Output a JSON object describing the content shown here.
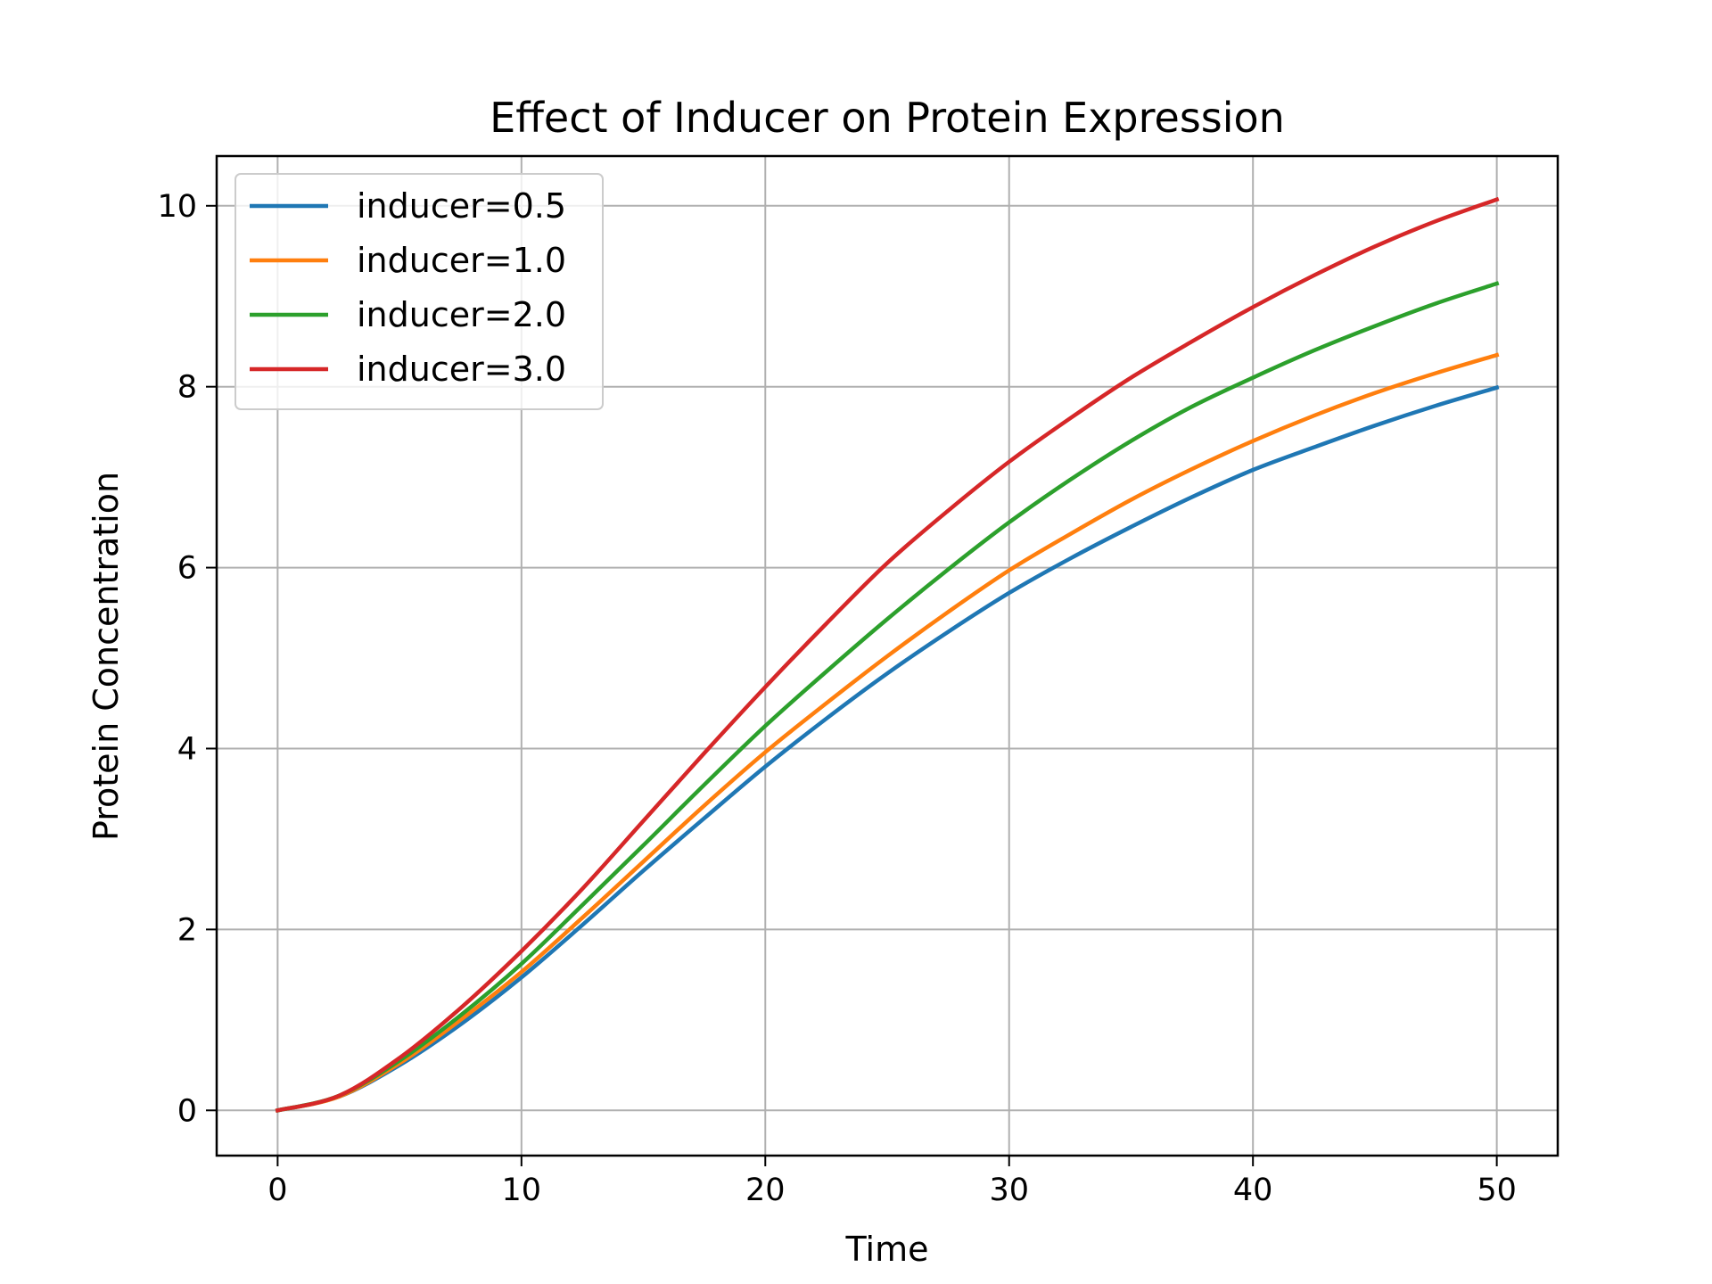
{
  "chart_data": {
    "type": "line",
    "title": "Effect of Inducer on Protein Expression",
    "xlabel": "Time",
    "ylabel": "Protein Concentration",
    "xlim": [
      -2.5,
      52.5
    ],
    "ylim": [
      -0.5,
      10.55
    ],
    "xticks": [
      0,
      10,
      20,
      30,
      40,
      50
    ],
    "yticks": [
      0,
      2,
      4,
      6,
      8,
      10
    ],
    "grid": true,
    "legend_position": "upper-left",
    "x": [
      0,
      2.5,
      5,
      7.5,
      10,
      12.5,
      15,
      17.5,
      20,
      22.5,
      25,
      27.5,
      30,
      32.5,
      35,
      37.5,
      40,
      42.5,
      45,
      47.5,
      50
    ],
    "series": [
      {
        "name": "inducer=0.5",
        "color": "#1f77b4",
        "values": [
          0,
          0.15,
          0.5,
          0.95,
          1.47,
          2.05,
          2.65,
          3.23,
          3.8,
          4.33,
          4.83,
          5.29,
          5.72,
          6.1,
          6.45,
          6.78,
          7.08,
          7.33,
          7.57,
          7.79,
          7.99
        ]
      },
      {
        "name": "inducer=1.0",
        "color": "#ff7f0e",
        "values": [
          0,
          0.15,
          0.52,
          1.0,
          1.53,
          2.13,
          2.75,
          3.37,
          3.96,
          4.5,
          5.02,
          5.51,
          5.97,
          6.37,
          6.75,
          7.09,
          7.4,
          7.68,
          7.93,
          8.15,
          8.35
        ]
      },
      {
        "name": "inducer=2.0",
        "color": "#2ca02c",
        "values": [
          0,
          0.16,
          0.55,
          1.05,
          1.62,
          2.27,
          2.93,
          3.6,
          4.25,
          4.85,
          5.43,
          5.98,
          6.5,
          6.97,
          7.4,
          7.78,
          8.1,
          8.4,
          8.67,
          8.92,
          9.14
        ]
      },
      {
        "name": "inducer=3.0",
        "color": "#d62728",
        "values": [
          0,
          0.16,
          0.58,
          1.13,
          1.76,
          2.45,
          3.2,
          3.95,
          4.68,
          5.38,
          6.05,
          6.63,
          7.17,
          7.65,
          8.1,
          8.5,
          8.88,
          9.23,
          9.55,
          9.83,
          10.07
        ]
      }
    ]
  }
}
